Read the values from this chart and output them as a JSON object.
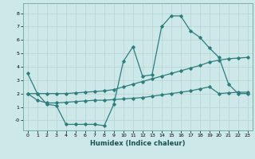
{
  "xlabel": "Humidex (Indice chaleur)",
  "background_color": "#cde8e8",
  "grid_color": "#b8d0d0",
  "line_color": "#2e7d7d",
  "spine_color": "#7aadad",
  "xlim": [
    -0.5,
    23.5
  ],
  "ylim": [
    -0.75,
    8.75
  ],
  "xticks": [
    0,
    1,
    2,
    3,
    4,
    5,
    6,
    7,
    8,
    9,
    10,
    11,
    12,
    13,
    14,
    15,
    16,
    17,
    18,
    19,
    20,
    21,
    22,
    23
  ],
  "yticks": [
    0,
    1,
    2,
    3,
    4,
    5,
    6,
    7,
    8
  ],
  "line1_x": [
    0,
    1,
    2,
    3,
    4,
    5,
    6,
    7,
    8,
    9,
    10,
    11,
    12,
    13,
    14,
    15,
    16,
    17,
    18,
    19,
    20,
    21,
    22,
    23
  ],
  "line1_y": [
    3.5,
    2.0,
    1.2,
    1.1,
    -0.3,
    -0.3,
    -0.3,
    -0.3,
    -0.4,
    1.2,
    4.4,
    5.5,
    3.3,
    3.4,
    7.0,
    7.8,
    7.8,
    6.7,
    6.2,
    5.4,
    4.7,
    2.7,
    2.0,
    2.0
  ],
  "line2_x": [
    0,
    1,
    2,
    3,
    4,
    5,
    6,
    7,
    8,
    9,
    10,
    11,
    12,
    13,
    14,
    15,
    16,
    17,
    18,
    19,
    20,
    21,
    22,
    23
  ],
  "line2_y": [
    2.0,
    2.0,
    2.0,
    2.0,
    2.0,
    2.05,
    2.1,
    2.15,
    2.2,
    2.3,
    2.5,
    2.7,
    2.9,
    3.1,
    3.3,
    3.5,
    3.7,
    3.9,
    4.1,
    4.35,
    4.5,
    4.6,
    4.65,
    4.7
  ],
  "line3_x": [
    0,
    1,
    2,
    3,
    4,
    5,
    6,
    7,
    8,
    9,
    10,
    11,
    12,
    13,
    14,
    15,
    16,
    17,
    18,
    19,
    20,
    21,
    22,
    23
  ],
  "line3_y": [
    2.0,
    1.5,
    1.3,
    1.3,
    1.35,
    1.4,
    1.45,
    1.5,
    1.5,
    1.55,
    1.6,
    1.65,
    1.7,
    1.8,
    1.9,
    2.0,
    2.1,
    2.2,
    2.35,
    2.5,
    2.0,
    2.05,
    2.1,
    2.1
  ]
}
